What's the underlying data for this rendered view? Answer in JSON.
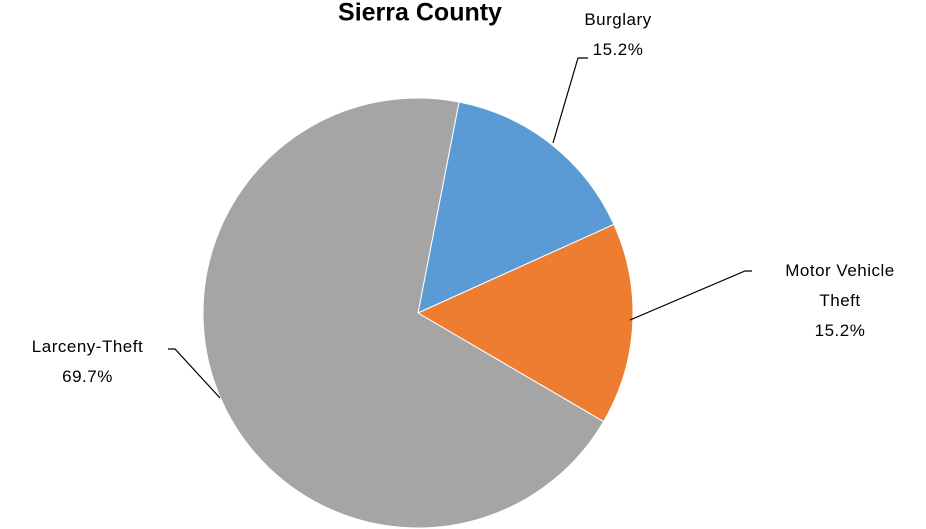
{
  "chart_data": {
    "type": "pie",
    "title": "Sierra County",
    "categories": [
      "Burglary",
      "Motor Vehicle Theft",
      "Larceny-Theft"
    ],
    "values": [
      15.2,
      15.2,
      69.7
    ],
    "value_labels": [
      "15.2%",
      "15.2%",
      "69.7%"
    ],
    "colors": [
      "#5b9bd5",
      "#ed7d31",
      "#a5a5a5"
    ]
  }
}
